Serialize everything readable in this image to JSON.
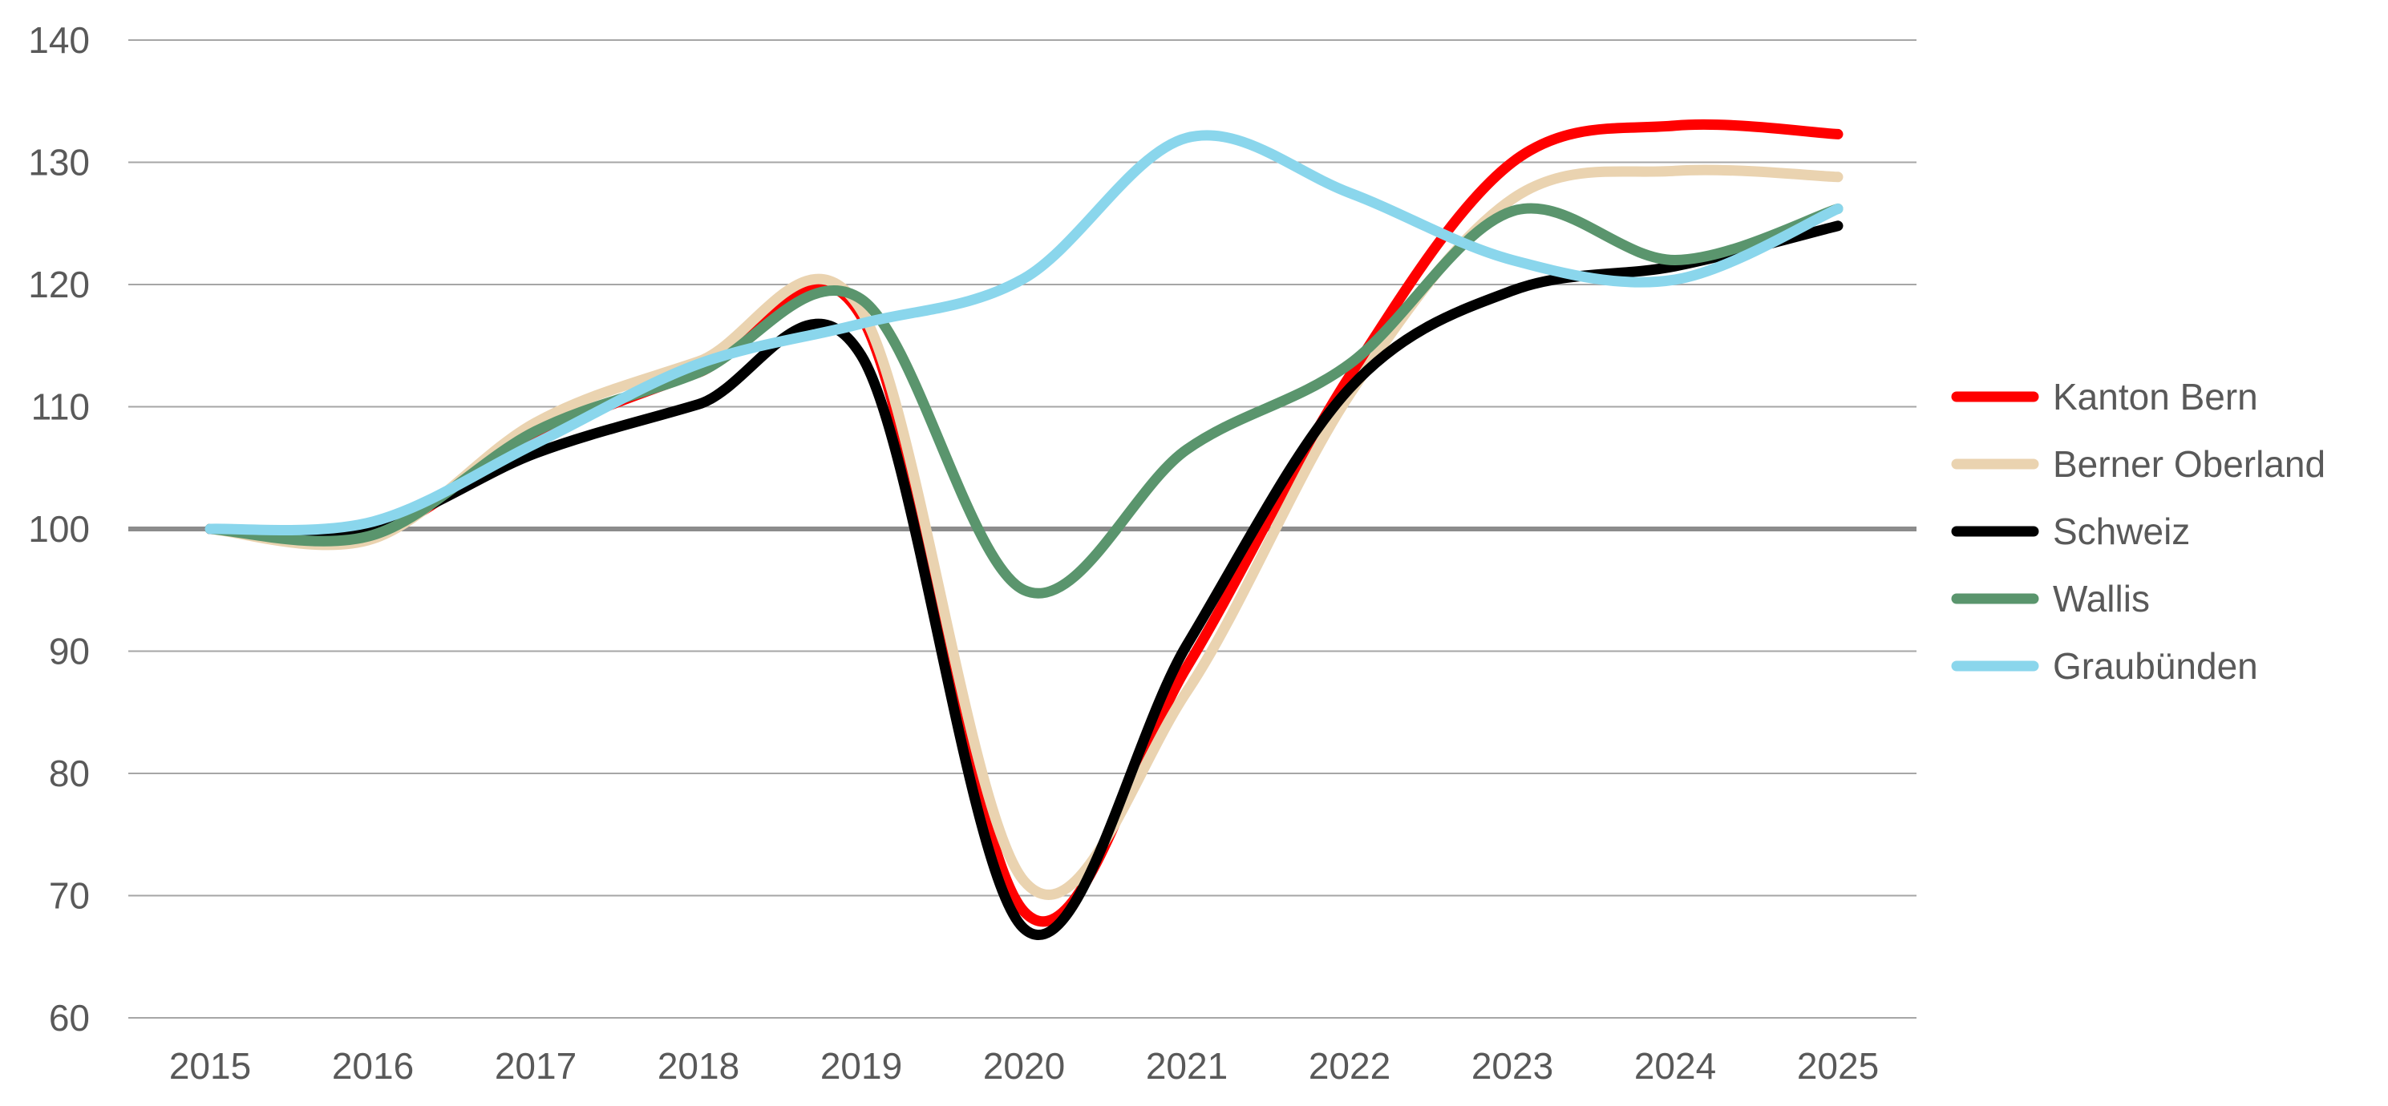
{
  "chart_data": {
    "type": "line",
    "title": "",
    "xlabel": "",
    "ylabel": "",
    "categories": [
      "2015",
      "2016",
      "2017",
      "2018",
      "2019",
      "2020",
      "2021",
      "2022",
      "2023",
      "2024",
      "2025"
    ],
    "x": [
      2015,
      2016,
      2017,
      2018,
      2019,
      2020,
      2021,
      2022,
      2023,
      2024,
      2025
    ],
    "ylim": [
      60,
      140
    ],
    "yticks": [
      60,
      70,
      80,
      90,
      100,
      110,
      120,
      130,
      140
    ],
    "grid": true,
    "reference_line": 100,
    "legend_position": "right",
    "smooth": true,
    "series": [
      {
        "name": "Kanton Bern",
        "color": "#ff0000",
        "values": [
          100,
          99.6,
          107.5,
          112.8,
          117.4,
          68.7,
          88.7,
          112.5,
          130,
          133,
          132.3
        ]
      },
      {
        "name": "Berner Oberland",
        "color": "#ead3b0",
        "values": [
          100,
          99.2,
          108.7,
          113.7,
          117.9,
          71.2,
          86.7,
          111,
          127,
          129.3,
          128.8
        ]
      },
      {
        "name": "Schweiz",
        "color": "#000000",
        "values": [
          100,
          100.2,
          106.2,
          110.2,
          114.2,
          67.3,
          90.5,
          111.5,
          119.5,
          121.5,
          124.8
        ]
      },
      {
        "name": "Wallis",
        "color": "#5a956d",
        "values": [
          100,
          99.5,
          108,
          112.8,
          118.8,
          95,
          106.5,
          113.5,
          126,
          122,
          126.2
        ]
      },
      {
        "name": "Graubünden",
        "color": "#8ad6ec",
        "values": [
          100,
          100.6,
          107,
          113.5,
          116.8,
          120.5,
          132,
          127.5,
          122,
          120.4,
          126.2
        ]
      }
    ]
  }
}
